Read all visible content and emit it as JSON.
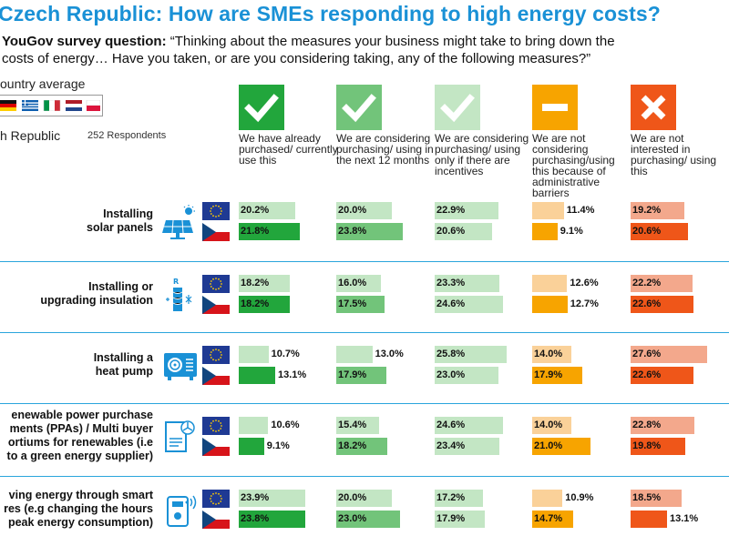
{
  "title": "Czech Republic: How are SMEs responding to high energy costs?",
  "subtitle": {
    "prefix": "YouGov survey question:",
    "question_line1": " “Thinking about the measures your business might take to bring down the",
    "question_line2": "costs of energy… Have you taken, or are you considering taking, any of the following measures?”"
  },
  "legend": {
    "average_label": "ountry average",
    "country_label": "h Republic",
    "respondents": "252 Respondents"
  },
  "colors": {
    "title": "#1a91d6",
    "separator": "#2aa5dc",
    "green_dark": "#22a63c",
    "green_mid": "#72c47a",
    "green_light": "#c3e6c4",
    "orange_dark": "#f7a400",
    "orange_light": "#fad199",
    "red_dark": "#ef5619",
    "red_light": "#f3a88c"
  },
  "chart_data": {
    "type": "bar",
    "layout": "small-multiples horizontal bars",
    "columns": [
      {
        "label": "We have already purchased/ currently use this",
        "icon": "check-icon"
      },
      {
        "label": "We are considering purchasing/ using in the next 12 months",
        "icon": "check-icon"
      },
      {
        "label": "We are considering purchasing/ using only if there are incentives",
        "icon": "check-icon"
      },
      {
        "label": "We are not considering purchasing/using this because of administrative barriers",
        "icon": "minus-icon"
      },
      {
        "label": "We are not interested in purchasing/ using this",
        "icon": "cross-icon"
      }
    ],
    "series": [
      {
        "name": "ountry average",
        "flag": "eu-flag"
      },
      {
        "name": "h Republic",
        "flag": "czech-flag"
      }
    ],
    "rows": [
      {
        "label_lines": [
          "Installing",
          "solar panels"
        ],
        "icon": "solar-panel-icon",
        "average": [
          20.2,
          20.0,
          22.9,
          11.4,
          19.2
        ],
        "czech": [
          21.8,
          23.8,
          20.6,
          9.1,
          20.6
        ]
      },
      {
        "label_lines": [
          "Installing or",
          "upgrading insulation"
        ],
        "icon": "insulation-icon",
        "average": [
          18.2,
          16.0,
          23.3,
          12.6,
          22.2
        ],
        "czech": [
          18.2,
          17.5,
          24.6,
          12.7,
          22.6
        ]
      },
      {
        "label_lines": [
          "Installing a",
          "heat pump"
        ],
        "icon": "heat-pump-icon",
        "average": [
          10.7,
          13.0,
          25.8,
          14.0,
          27.6
        ],
        "czech": [
          13.1,
          17.9,
          23.0,
          17.9,
          22.6
        ]
      },
      {
        "label_lines": [
          "enewable power purchase",
          "ments (PPAs) / Multi buyer",
          "ortiums for renewables (i.e",
          "to a green energy supplier)"
        ],
        "icon": "ppa-contract-icon",
        "average": [
          10.6,
          15.4,
          24.6,
          14.0,
          22.8
        ],
        "czech": [
          9.1,
          18.2,
          23.4,
          21.0,
          19.8
        ]
      },
      {
        "label_lines": [
          "ving energy through smart",
          "res (e.g changing the hours",
          "peak energy consumption)"
        ],
        "icon": "smart-meter-icon",
        "average": [
          23.9,
          20.0,
          17.2,
          10.9,
          18.5
        ],
        "czech": [
          23.8,
          23.0,
          17.9,
          14.7,
          13.1
        ]
      }
    ]
  }
}
